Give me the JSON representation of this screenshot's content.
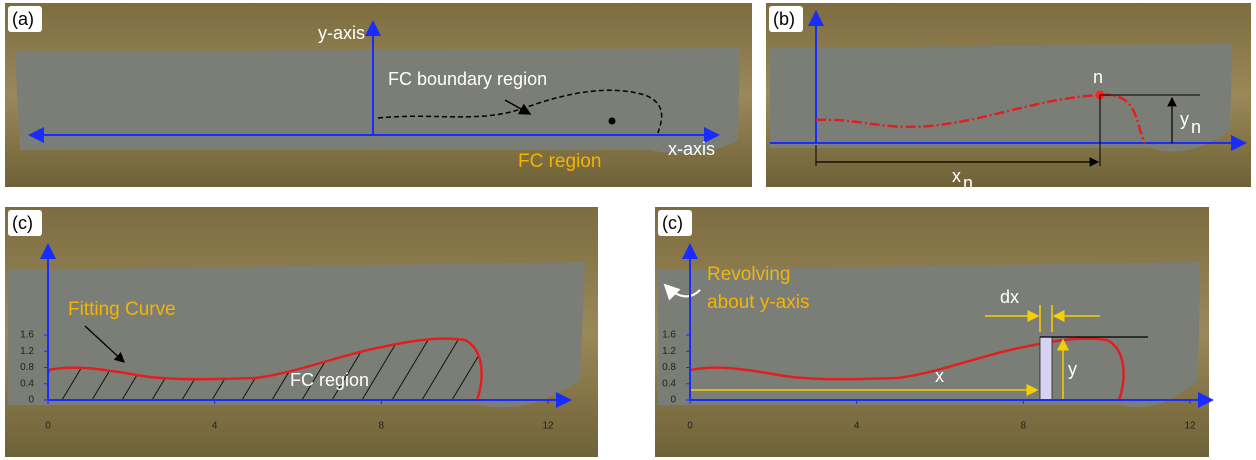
{
  "panels": {
    "a": {
      "label": "(a)",
      "y_axis": "y-axis",
      "boundary": "FC boundary region",
      "region": "FC region",
      "x_axis": "x-axis"
    },
    "b": {
      "label": "(b)",
      "point": "n",
      "y_n": {
        "base": "y",
        "sub": "n"
      },
      "x_n": {
        "base": "x",
        "sub": "n"
      }
    },
    "c": {
      "label": "(c)",
      "curve": "Fitting Curve",
      "region": "FC region",
      "xticks": [
        0,
        4,
        8,
        12
      ],
      "yticks": [
        0,
        0.4,
        0.8,
        1.2,
        1.6
      ]
    },
    "d": {
      "label": "(c)",
      "revolving": [
        "Revolving",
        "about y-axis"
      ],
      "dx": "dx",
      "x": "x",
      "y": "y",
      "xticks": [
        0,
        4,
        8,
        12
      ],
      "yticks": [
        0,
        0.4,
        0.8,
        1.2,
        1.6
      ]
    }
  }
}
